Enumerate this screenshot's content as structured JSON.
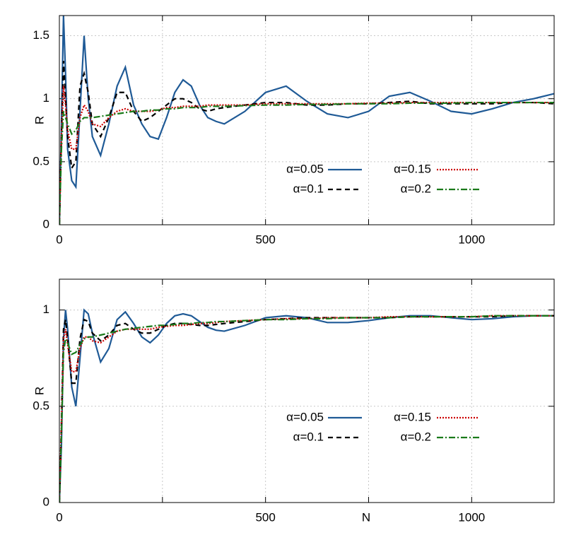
{
  "chart_data": [
    {
      "type": "line",
      "ylabel": "R",
      "x": [
        0,
        5,
        10,
        15,
        20,
        30,
        40,
        50,
        60,
        70,
        80,
        100,
        120,
        140,
        160,
        180,
        200,
        220,
        240,
        260,
        280,
        300,
        320,
        340,
        360,
        380,
        400,
        450,
        500,
        550,
        600,
        650,
        700,
        750,
        800,
        850,
        900,
        950,
        1000,
        1050,
        1100,
        1150,
        1200
      ],
      "xlim": [
        0,
        1200
      ],
      "xticks": [
        0,
        500,
        1000
      ],
      "xminor_ticks": [
        250,
        750
      ],
      "ylim": [
        0,
        1.66
      ],
      "yticks": [
        0,
        0.5,
        1,
        1.5
      ],
      "grid": true,
      "series": [
        {
          "name": "α=0.05",
          "color": "#1f5a96",
          "dash": "solid",
          "values": [
            0,
            0.8,
            1.66,
            1.2,
            0.6,
            0.35,
            0.3,
            0.9,
            1.5,
            1.0,
            0.7,
            0.55,
            0.8,
            1.1,
            1.25,
            0.95,
            0.8,
            0.7,
            0.68,
            0.85,
            1.05,
            1.15,
            1.1,
            0.95,
            0.85,
            0.82,
            0.8,
            0.9,
            1.05,
            1.1,
            0.98,
            0.88,
            0.85,
            0.9,
            1.02,
            1.05,
            0.98,
            0.9,
            0.88,
            0.92,
            0.97,
            1.0,
            1.04
          ]
        },
        {
          "name": "α=0.1",
          "color": "#000000",
          "dash": "dashed",
          "values": [
            0,
            0.7,
            1.3,
            1.0,
            0.7,
            0.45,
            0.5,
            1.1,
            1.2,
            1.05,
            0.8,
            0.7,
            0.85,
            1.05,
            1.05,
            0.9,
            0.82,
            0.85,
            0.9,
            0.95,
            1.0,
            1.0,
            0.97,
            0.92,
            0.9,
            0.92,
            0.93,
            0.95,
            0.97,
            0.97,
            0.95,
            0.95,
            0.96,
            0.96,
            0.97,
            0.98,
            0.96,
            0.96,
            0.96,
            0.96,
            0.97,
            0.97,
            0.96
          ]
        },
        {
          "name": "α=0.15",
          "color": "#cc0000",
          "dash": "dotted",
          "values": [
            0,
            0.7,
            1.1,
            0.95,
            0.75,
            0.6,
            0.6,
            0.85,
            0.95,
            0.9,
            0.8,
            0.78,
            0.85,
            0.9,
            0.92,
            0.9,
            0.9,
            0.9,
            0.91,
            0.93,
            0.93,
            0.94,
            0.94,
            0.94,
            0.95,
            0.95,
            0.95,
            0.95,
            0.96,
            0.96,
            0.96,
            0.96,
            0.96,
            0.965,
            0.965,
            0.97,
            0.97,
            0.97,
            0.97,
            0.97,
            0.97,
            0.97,
            0.97
          ]
        },
        {
          "name": "α=0.2",
          "color": "#1a7a1a",
          "dash": "dashdot",
          "values": [
            0,
            0.6,
            0.9,
            0.85,
            0.8,
            0.72,
            0.75,
            0.82,
            0.85,
            0.85,
            0.85,
            0.86,
            0.87,
            0.88,
            0.89,
            0.9,
            0.9,
            0.91,
            0.91,
            0.92,
            0.92,
            0.93,
            0.93,
            0.93,
            0.94,
            0.94,
            0.94,
            0.945,
            0.95,
            0.95,
            0.955,
            0.955,
            0.96,
            0.96,
            0.96,
            0.965,
            0.965,
            0.965,
            0.97,
            0.97,
            0.97,
            0.97,
            0.97
          ]
        }
      ]
    },
    {
      "type": "line",
      "ylabel": "R",
      "xlabel": "N",
      "x": [
        0,
        5,
        10,
        15,
        20,
        30,
        40,
        50,
        60,
        70,
        80,
        100,
        120,
        140,
        160,
        180,
        200,
        220,
        240,
        260,
        280,
        300,
        320,
        340,
        360,
        380,
        400,
        450,
        500,
        550,
        600,
        650,
        700,
        750,
        800,
        850,
        900,
        950,
        1000,
        1050,
        1100,
        1150,
        1200
      ],
      "xlim": [
        0,
        1200
      ],
      "xticks": [
        0,
        500,
        1000
      ],
      "xminor_ticks": [
        250,
        750
      ],
      "ylim": [
        0,
        1.16
      ],
      "yticks": [
        0,
        0.5,
        1
      ],
      "grid": true,
      "series": [
        {
          "name": "α=0.05",
          "color": "#1f5a96",
          "dash": "solid",
          "values": [
            0,
            0.3,
            0.85,
            1.0,
            0.9,
            0.6,
            0.5,
            0.75,
            1.0,
            0.98,
            0.88,
            0.73,
            0.8,
            0.95,
            0.99,
            0.93,
            0.86,
            0.83,
            0.87,
            0.93,
            0.97,
            0.98,
            0.97,
            0.94,
            0.91,
            0.895,
            0.89,
            0.92,
            0.96,
            0.97,
            0.96,
            0.935,
            0.935,
            0.945,
            0.96,
            0.97,
            0.97,
            0.96,
            0.95,
            0.955,
            0.965,
            0.97,
            0.97
          ]
        },
        {
          "name": "α=0.1",
          "color": "#000000",
          "dash": "dashed",
          "values": [
            0,
            0.4,
            0.9,
            0.95,
            0.85,
            0.62,
            0.62,
            0.85,
            0.95,
            0.94,
            0.88,
            0.84,
            0.87,
            0.92,
            0.93,
            0.9,
            0.88,
            0.88,
            0.9,
            0.92,
            0.93,
            0.93,
            0.925,
            0.92,
            0.92,
            0.925,
            0.93,
            0.94,
            0.95,
            0.955,
            0.96,
            0.96,
            0.96,
            0.96,
            0.96,
            0.965,
            0.965,
            0.965,
            0.965,
            0.965,
            0.97,
            0.97,
            0.97
          ]
        },
        {
          "name": "α=0.15",
          "color": "#cc0000",
          "dash": "dotted",
          "values": [
            0,
            0.4,
            0.85,
            0.9,
            0.82,
            0.68,
            0.68,
            0.8,
            0.86,
            0.86,
            0.84,
            0.83,
            0.86,
            0.89,
            0.9,
            0.9,
            0.9,
            0.9,
            0.91,
            0.915,
            0.92,
            0.92,
            0.925,
            0.93,
            0.93,
            0.935,
            0.94,
            0.945,
            0.95,
            0.955,
            0.955,
            0.96,
            0.96,
            0.96,
            0.965,
            0.965,
            0.965,
            0.965,
            0.965,
            0.97,
            0.97,
            0.97,
            0.97
          ]
        },
        {
          "name": "α=0.2",
          "color": "#1a7a1a",
          "dash": "dashdot",
          "values": [
            0,
            0.35,
            0.78,
            0.85,
            0.83,
            0.77,
            0.78,
            0.82,
            0.85,
            0.86,
            0.86,
            0.87,
            0.88,
            0.89,
            0.9,
            0.905,
            0.91,
            0.915,
            0.92,
            0.92,
            0.925,
            0.93,
            0.93,
            0.935,
            0.935,
            0.94,
            0.94,
            0.945,
            0.95,
            0.95,
            0.955,
            0.955,
            0.96,
            0.96,
            0.96,
            0.965,
            0.965,
            0.965,
            0.965,
            0.97,
            0.97,
            0.97,
            0.97
          ]
        }
      ]
    }
  ]
}
